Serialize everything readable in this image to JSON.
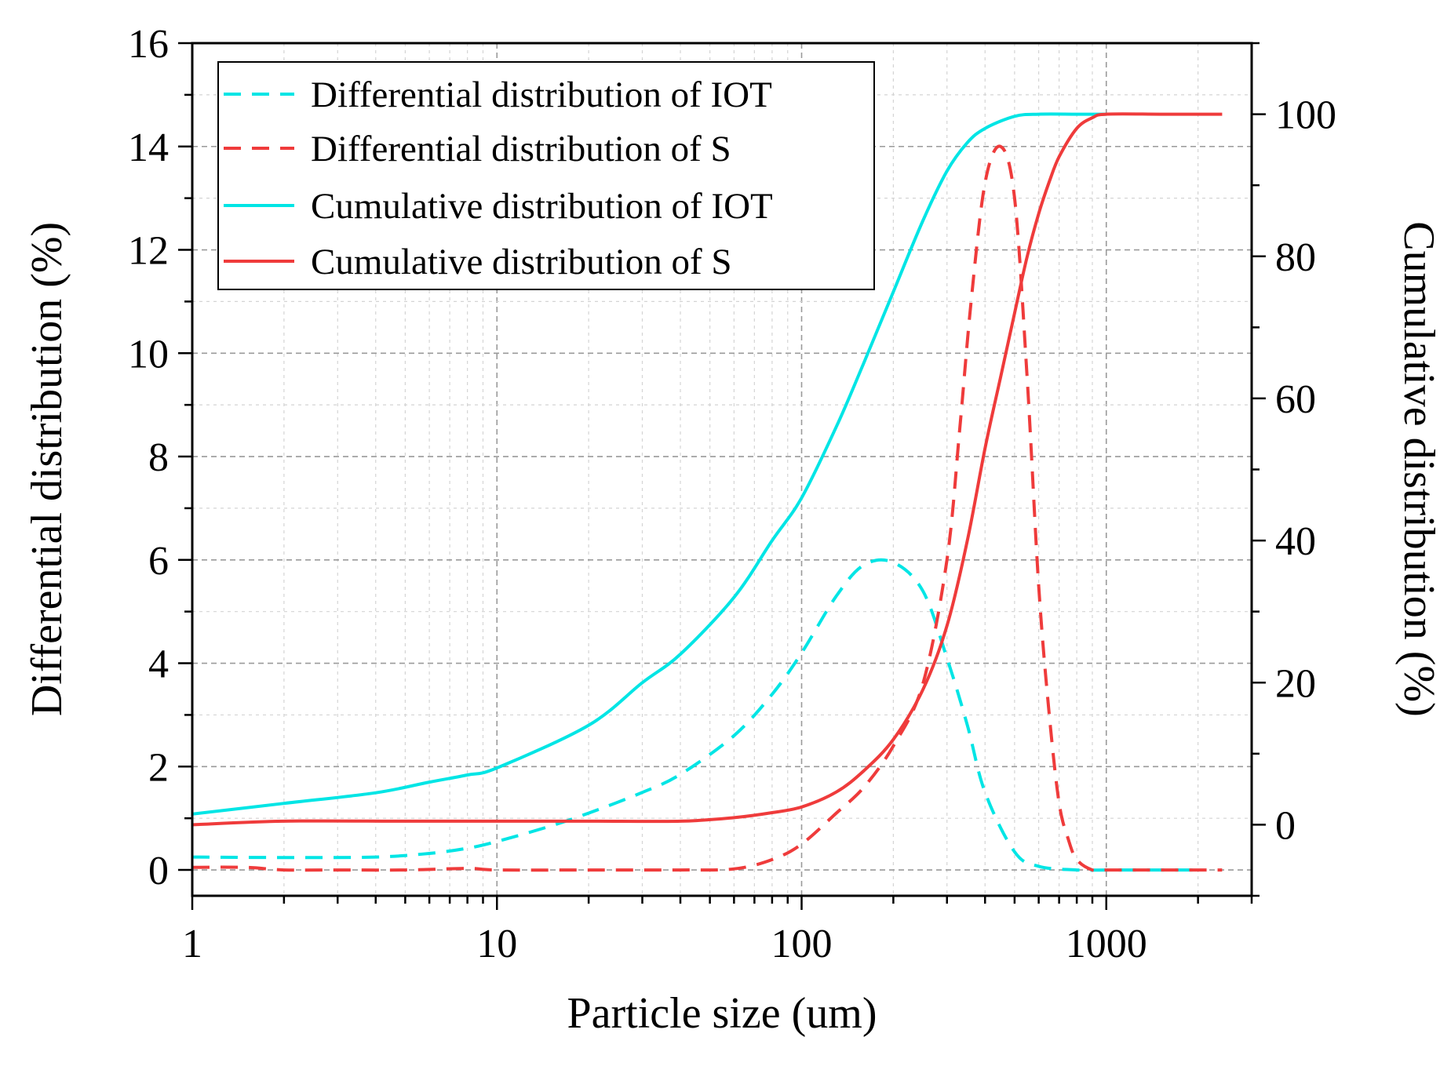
{
  "chart_data": {
    "type": "line",
    "xscale": "log",
    "xlabel": "Particle size (um)",
    "ylabel_left": "Differential distribution (%)",
    "ylabel_right": "Cumulative distribution (%)",
    "xlim": [
      1,
      3000
    ],
    "ylim_left": [
      -0.5,
      16
    ],
    "ylim_right": [
      -10,
      110
    ],
    "x_ticks": [
      1,
      10,
      100,
      1000
    ],
    "x_tick_labels": [
      "1",
      "10",
      "100",
      "1000"
    ],
    "y_left_ticks": [
      0,
      2,
      4,
      6,
      8,
      10,
      12,
      14,
      16
    ],
    "y_left_tick_labels": [
      "0",
      "2",
      "4",
      "6",
      "8",
      "10",
      "12",
      "14",
      "16"
    ],
    "y_right_ticks": [
      0,
      20,
      40,
      60,
      80,
      100
    ],
    "y_right_tick_labels": [
      "0",
      "20",
      "40",
      "60",
      "80",
      "100"
    ],
    "grid": true,
    "legend_position": "top-left",
    "series": [
      {
        "name": "Differential distribution of IOT",
        "axis": "left",
        "style": "dashed",
        "color": "#00e5e5",
        "x": [
          1,
          2,
          4,
          6,
          8,
          10,
          15,
          20,
          30,
          40,
          60,
          80,
          100,
          130,
          160,
          200,
          250,
          300,
          350,
          400,
          500,
          600,
          800,
          1000,
          1500,
          2000
        ],
        "y": [
          0.25,
          0.24,
          0.25,
          0.32,
          0.42,
          0.55,
          0.85,
          1.1,
          1.5,
          1.85,
          2.6,
          3.4,
          4.2,
          5.3,
          5.9,
          5.95,
          5.4,
          4.1,
          2.8,
          1.5,
          0.35,
          0.07,
          0.0,
          0.0,
          0.0,
          0.0
        ]
      },
      {
        "name": "Differential distribution of S",
        "axis": "left",
        "style": "dashed",
        "color": "#ef3b3b",
        "x": [
          1,
          1.5,
          2,
          3,
          5,
          8,
          10,
          20,
          40,
          60,
          80,
          100,
          130,
          160,
          200,
          250,
          300,
          330,
          360,
          400,
          450,
          500,
          550,
          600,
          650,
          700,
          750,
          800,
          900,
          1000,
          1200,
          1500,
          2000,
          2400
        ],
        "y": [
          0.05,
          0.05,
          0.0,
          0.0,
          0.0,
          0.03,
          0.0,
          0.0,
          0.0,
          0.02,
          0.2,
          0.5,
          1.1,
          1.6,
          2.4,
          3.6,
          6.0,
          8.5,
          11.0,
          13.3,
          14.0,
          13.0,
          9.5,
          5.5,
          3.0,
          1.3,
          0.6,
          0.2,
          0.0,
          0.0,
          0.0,
          0.0,
          0.0,
          0.0
        ]
      },
      {
        "name": "Cumulative distribution of IOT",
        "axis": "right",
        "style": "solid",
        "color": "#00e5e5",
        "x": [
          1,
          2,
          4,
          6,
          8,
          10,
          20,
          30,
          40,
          60,
          80,
          100,
          130,
          160,
          200,
          250,
          300,
          350,
          400,
          500,
          600,
          800,
          1000
        ],
        "y": [
          1.5,
          3,
          4.5,
          6,
          7,
          8,
          14,
          20,
          24,
          32,
          40,
          46,
          56,
          65,
          75,
          85,
          92,
          96,
          98,
          99.7,
          100,
          100,
          100
        ]
      },
      {
        "name": "Cumulative distribution of S",
        "axis": "right",
        "style": "solid",
        "color": "#ef3b3b",
        "x": [
          1,
          2,
          5,
          10,
          20,
          40,
          60,
          80,
          100,
          130,
          160,
          200,
          250,
          300,
          350,
          400,
          450,
          500,
          550,
          600,
          650,
          700,
          800,
          900,
          1000,
          1500,
          2000,
          2400
        ],
        "y": [
          0,
          0.5,
          0.5,
          0.5,
          0.5,
          0.5,
          1,
          1.7,
          2.5,
          4.6,
          7.6,
          12,
          19,
          28,
          40,
          53,
          63,
          72,
          80,
          86,
          90.5,
          94,
          98,
          99.5,
          100,
          100,
          100,
          100
        ]
      }
    ]
  }
}
